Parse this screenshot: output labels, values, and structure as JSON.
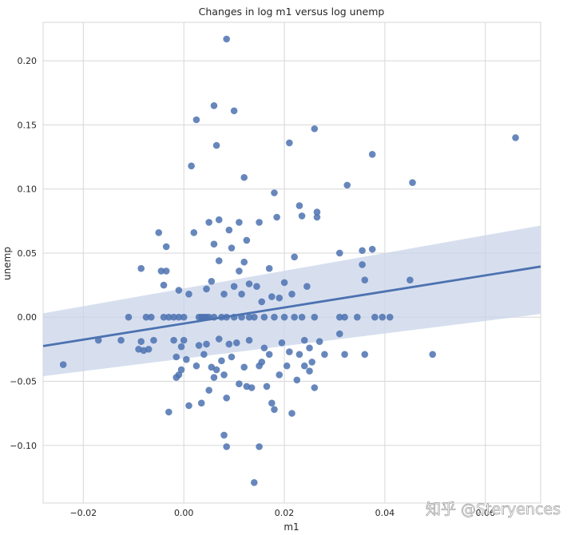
{
  "chart_data": {
    "type": "scatter",
    "title": "Changes in log m1 versus log unemp",
    "xlabel": "m1",
    "ylabel": "unemp",
    "xlim": [
      -0.028,
      0.071
    ],
    "ylim": [
      -0.145,
      0.23
    ],
    "xticks": [
      -0.02,
      0.0,
      0.02,
      0.04,
      0.06
    ],
    "xtick_labels": [
      "−0.02",
      "0.00",
      "0.02",
      "0.04",
      "0.06"
    ],
    "yticks": [
      -0.1,
      -0.05,
      0.0,
      0.05,
      0.1,
      0.15,
      0.2
    ],
    "ytick_labels": [
      "−0.10",
      "−0.05",
      "0.00",
      "0.05",
      "0.10",
      "0.15",
      "0.20"
    ],
    "grid": true,
    "point_color": "#4c72b0",
    "line_color": "#4c72b0",
    "band_color": "#c9d4ea",
    "background": "#ffffff",
    "grid_color": "#d7d7d7",
    "regression": {
      "x": [
        -0.028,
        0.071
      ],
      "y": [
        -0.0225,
        0.0395
      ],
      "ci_lower": [
        -0.046,
        0.0025
      ],
      "ci_upper": [
        0.003,
        0.0715
      ]
    },
    "points": [
      [
        -0.024,
        -0.037
      ],
      [
        -0.017,
        -0.018
      ],
      [
        -0.0125,
        -0.018
      ],
      [
        -0.011,
        0.0
      ],
      [
        -0.009,
        -0.025
      ],
      [
        -0.0085,
        0.038
      ],
      [
        -0.008,
        -0.026
      ],
      [
        -0.0085,
        -0.019
      ],
      [
        -0.0075,
        0.0
      ],
      [
        -0.007,
        -0.025
      ],
      [
        -0.006,
        -0.018
      ],
      [
        -0.0065,
        0.0
      ],
      [
        -0.005,
        0.066
      ],
      [
        -0.0045,
        0.036
      ],
      [
        -0.004,
        0.025
      ],
      [
        -0.004,
        0.0
      ],
      [
        -0.0035,
        0.055
      ],
      [
        -0.0035,
        0.036
      ],
      [
        -0.003,
        -0.074
      ],
      [
        -0.003,
        0.0
      ],
      [
        -0.002,
        -0.018
      ],
      [
        -0.002,
        0.0
      ],
      [
        -0.0015,
        -0.031
      ],
      [
        -0.0015,
        -0.047
      ],
      [
        -0.001,
        0.021
      ],
      [
        -0.001,
        -0.045
      ],
      [
        -0.001,
        0.0
      ],
      [
        -0.0005,
        -0.023
      ],
      [
        -0.0005,
        -0.041
      ],
      [
        0.0,
        -0.018
      ],
      [
        0.0,
        0.0
      ],
      [
        0.0005,
        -0.033
      ],
      [
        0.001,
        -0.069
      ],
      [
        0.001,
        0.018
      ],
      [
        0.0015,
        0.118
      ],
      [
        0.002,
        0.066
      ],
      [
        0.0025,
        0.154
      ],
      [
        0.0025,
        -0.038
      ],
      [
        0.003,
        0.0
      ],
      [
        0.003,
        -0.022
      ],
      [
        0.0035,
        0.0
      ],
      [
        0.0035,
        -0.067
      ],
      [
        0.004,
        0.0
      ],
      [
        0.004,
        -0.029
      ],
      [
        0.0045,
        0.022
      ],
      [
        0.0045,
        0.0
      ],
      [
        0.0045,
        -0.021
      ],
      [
        0.005,
        0.074
      ],
      [
        0.005,
        0.0
      ],
      [
        0.005,
        -0.057
      ],
      [
        0.0055,
        0.028
      ],
      [
        0.0055,
        -0.039
      ],
      [
        0.006,
        0.165
      ],
      [
        0.006,
        0.057
      ],
      [
        0.006,
        0.0
      ],
      [
        0.006,
        -0.047
      ],
      [
        0.0065,
        0.134
      ],
      [
        0.0065,
        -0.041
      ],
      [
        0.007,
        0.076
      ],
      [
        0.007,
        0.044
      ],
      [
        0.007,
        -0.017
      ],
      [
        0.0075,
        0.0
      ],
      [
        0.0075,
        -0.034
      ],
      [
        0.008,
        0.018
      ],
      [
        0.008,
        -0.092
      ],
      [
        0.008,
        -0.045
      ],
      [
        0.0085,
        0.217
      ],
      [
        0.0085,
        0.0
      ],
      [
        0.0085,
        -0.063
      ],
      [
        0.0085,
        -0.101
      ],
      [
        0.009,
        0.068
      ],
      [
        0.009,
        -0.021
      ],
      [
        0.0095,
        0.054
      ],
      [
        0.0095,
        -0.031
      ],
      [
        0.01,
        0.161
      ],
      [
        0.01,
        0.024
      ],
      [
        0.01,
        0.0
      ],
      [
        0.0105,
        -0.02
      ],
      [
        0.011,
        0.074
      ],
      [
        0.011,
        0.036
      ],
      [
        0.011,
        -0.052
      ],
      [
        0.0115,
        0.018
      ],
      [
        0.0115,
        0.0
      ],
      [
        0.012,
        0.109
      ],
      [
        0.012,
        0.043
      ],
      [
        0.012,
        -0.039
      ],
      [
        0.0125,
        0.06
      ],
      [
        0.0125,
        -0.054
      ],
      [
        0.013,
        0.026
      ],
      [
        0.013,
        0.0
      ],
      [
        0.013,
        -0.018
      ],
      [
        0.0135,
        -0.055
      ],
      [
        0.014,
        -0.129
      ],
      [
        0.014,
        0.0
      ],
      [
        0.0145,
        0.024
      ],
      [
        0.015,
        0.074
      ],
      [
        0.015,
        -0.101
      ],
      [
        0.015,
        -0.038
      ],
      [
        0.0155,
        0.012
      ],
      [
        0.0155,
        -0.035
      ],
      [
        0.016,
        0.0
      ],
      [
        0.016,
        -0.024
      ],
      [
        0.0165,
        -0.054
      ],
      [
        0.017,
        0.038
      ],
      [
        0.017,
        -0.029
      ],
      [
        0.0175,
        0.016
      ],
      [
        0.0175,
        -0.067
      ],
      [
        0.018,
        0.097
      ],
      [
        0.018,
        0.0
      ],
      [
        0.018,
        -0.072
      ],
      [
        0.0185,
        0.078
      ],
      [
        0.019,
        0.015
      ],
      [
        0.019,
        -0.045
      ],
      [
        0.0195,
        -0.02
      ],
      [
        0.02,
        0.027
      ],
      [
        0.02,
        0.0
      ],
      [
        0.0205,
        -0.038
      ],
      [
        0.021,
        0.136
      ],
      [
        0.021,
        -0.027
      ],
      [
        0.0215,
        0.018
      ],
      [
        0.0215,
        -0.075
      ],
      [
        0.022,
        0.047
      ],
      [
        0.022,
        0.0
      ],
      [
        0.0225,
        -0.049
      ],
      [
        0.023,
        0.087
      ],
      [
        0.023,
        -0.029
      ],
      [
        0.0235,
        0.079
      ],
      [
        0.0235,
        0.0
      ],
      [
        0.024,
        -0.018
      ],
      [
        0.024,
        -0.038
      ],
      [
        0.0245,
        0.024
      ],
      [
        0.025,
        -0.042
      ],
      [
        0.025,
        -0.024
      ],
      [
        0.0255,
        -0.035
      ],
      [
        0.026,
        0.147
      ],
      [
        0.026,
        0.0
      ],
      [
        0.026,
        -0.055
      ],
      [
        0.0265,
        0.082
      ],
      [
        0.0265,
        0.078
      ],
      [
        0.027,
        -0.019
      ],
      [
        0.028,
        -0.029
      ],
      [
        0.031,
        0.05
      ],
      [
        0.031,
        0.0
      ],
      [
        0.031,
        -0.013
      ],
      [
        0.032,
        -0.029
      ],
      [
        0.0325,
        0.103
      ],
      [
        0.032,
        0.0
      ],
      [
        0.0345,
        0.0
      ],
      [
        0.0355,
        0.041
      ],
      [
        0.0355,
        0.052
      ],
      [
        0.036,
        0.029
      ],
      [
        0.036,
        -0.029
      ],
      [
        0.0375,
        0.127
      ],
      [
        0.0375,
        0.053
      ],
      [
        0.038,
        0.0
      ],
      [
        0.0395,
        0.0
      ],
      [
        0.041,
        0.0
      ],
      [
        0.0455,
        0.105
      ],
      [
        0.045,
        0.029
      ],
      [
        0.0495,
        -0.029
      ],
      [
        0.066,
        0.14
      ]
    ]
  },
  "watermark": {
    "text": "知乎 @Steryences"
  }
}
